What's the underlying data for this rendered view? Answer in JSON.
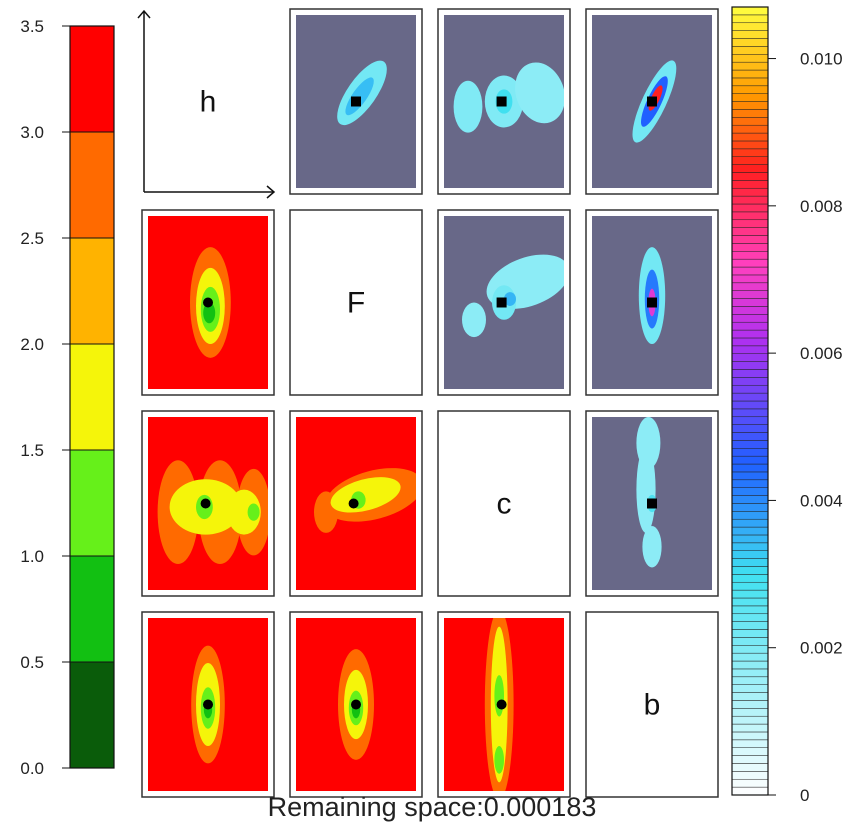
{
  "chart_data": {
    "type": "heatmap",
    "variables": [
      "h",
      "F",
      "c",
      "b"
    ],
    "footer": "Remaining space:0.000183",
    "left_colorbar": {
      "ticks": [
        "0.0",
        "0.5",
        "1.0",
        "1.5",
        "2.0",
        "2.5",
        "3.0",
        "3.5"
      ],
      "range": [
        0,
        3.5
      ],
      "bins": [
        {
          "from": 0.0,
          "to": 0.5,
          "color": "#0a5c0a"
        },
        {
          "from": 0.5,
          "to": 1.0,
          "color": "#12c012"
        },
        {
          "from": 1.0,
          "to": 1.5,
          "color": "#66f01a"
        },
        {
          "from": 1.5,
          "to": 2.0,
          "color": "#f5f50a"
        },
        {
          "from": 2.0,
          "to": 2.5,
          "color": "#ffb300"
        },
        {
          "from": 2.5,
          "to": 3.0,
          "color": "#ff6a00"
        },
        {
          "from": 3.0,
          "to": 3.5,
          "color": "#ff0000"
        }
      ]
    },
    "right_colorbar": {
      "ticks": [
        "0",
        "0.002",
        "0.004",
        "0.006",
        "0.008",
        "0.010"
      ],
      "tick_values": [
        0,
        0.002,
        0.004,
        0.006,
        0.008,
        0.01
      ],
      "range": [
        0,
        0.0107
      ],
      "gradient_stops": [
        {
          "v": 0.0,
          "color": "#ffffff"
        },
        {
          "v": 0.003,
          "color": "#40e0f0"
        },
        {
          "v": 0.0045,
          "color": "#2060ff"
        },
        {
          "v": 0.0062,
          "color": "#b030f0"
        },
        {
          "v": 0.0072,
          "color": "#ff40c0"
        },
        {
          "v": 0.0085,
          "color": "#ff2020"
        },
        {
          "v": 0.0095,
          "color": "#ff9a00"
        },
        {
          "v": 0.0107,
          "color": "#ffff40"
        }
      ],
      "background_color": "#686888"
    },
    "panels": [
      {
        "row": 0,
        "col": 1,
        "style": "upper",
        "marker": [
          0.5,
          0.5
        ],
        "blobs": [
          {
            "cx": 0.55,
            "cy": 0.45,
            "rx": 0.12,
            "ry": 0.22,
            "rot": 35,
            "level": 0.0022
          },
          {
            "cx": 0.53,
            "cy": 0.47,
            "rx": 0.06,
            "ry": 0.13,
            "rot": 35,
            "level": 0.0034
          }
        ]
      },
      {
        "row": 0,
        "col": 2,
        "style": "upper",
        "marker": [
          0.48,
          0.5
        ],
        "blobs": [
          {
            "cx": 0.2,
            "cy": 0.53,
            "rx": 0.12,
            "ry": 0.15,
            "rot": 0,
            "level": 0.002
          },
          {
            "cx": 0.5,
            "cy": 0.5,
            "rx": 0.16,
            "ry": 0.15,
            "rot": 0,
            "level": 0.002
          },
          {
            "cx": 0.8,
            "cy": 0.45,
            "rx": 0.2,
            "ry": 0.18,
            "rot": -20,
            "level": 0.0018
          },
          {
            "cx": 0.5,
            "cy": 0.5,
            "rx": 0.07,
            "ry": 0.07,
            "rot": 0,
            "level": 0.003
          }
        ]
      },
      {
        "row": 0,
        "col": 3,
        "style": "upper",
        "marker": [
          0.5,
          0.5
        ],
        "blobs": [
          {
            "cx": 0.52,
            "cy": 0.5,
            "rx": 0.1,
            "ry": 0.26,
            "rot": 25,
            "level": 0.0022
          },
          {
            "cx": 0.52,
            "cy": 0.5,
            "rx": 0.06,
            "ry": 0.16,
            "rot": 25,
            "level": 0.0045
          },
          {
            "cx": 0.53,
            "cy": 0.48,
            "rx": 0.035,
            "ry": 0.08,
            "rot": 25,
            "level": 0.0085
          }
        ]
      },
      {
        "row": 1,
        "col": 0,
        "style": "lower",
        "marker": [
          0.5,
          0.5
        ],
        "blobs": [
          {
            "cx": 0.52,
            "cy": 0.5,
            "rx": 0.17,
            "ry": 0.32,
            "rot": 0,
            "level": 2.6
          },
          {
            "cx": 0.52,
            "cy": 0.52,
            "rx": 0.12,
            "ry": 0.22,
            "rot": 0,
            "level": 1.7
          },
          {
            "cx": 0.52,
            "cy": 0.54,
            "rx": 0.08,
            "ry": 0.13,
            "rot": 0,
            "level": 1.2
          },
          {
            "cx": 0.51,
            "cy": 0.56,
            "rx": 0.05,
            "ry": 0.06,
            "rot": 0,
            "level": 0.7
          }
        ]
      },
      {
        "row": 2,
        "col": 0,
        "style": "lower",
        "marker": [
          0.48,
          0.5
        ],
        "blobs": [
          {
            "cx": 0.25,
            "cy": 0.55,
            "rx": 0.17,
            "ry": 0.3,
            "rot": 0,
            "level": 2.6
          },
          {
            "cx": 0.6,
            "cy": 0.55,
            "rx": 0.18,
            "ry": 0.3,
            "rot": 0,
            "level": 2.6
          },
          {
            "cx": 0.88,
            "cy": 0.55,
            "rx": 0.14,
            "ry": 0.25,
            "rot": 0,
            "level": 2.6
          },
          {
            "cx": 0.48,
            "cy": 0.52,
            "rx": 0.3,
            "ry": 0.16,
            "rot": 0,
            "level": 1.7
          },
          {
            "cx": 0.8,
            "cy": 0.55,
            "rx": 0.14,
            "ry": 0.13,
            "rot": 0,
            "level": 1.7
          },
          {
            "cx": 0.47,
            "cy": 0.52,
            "rx": 0.07,
            "ry": 0.07,
            "rot": 0,
            "level": 1.2
          },
          {
            "cx": 0.88,
            "cy": 0.55,
            "rx": 0.05,
            "ry": 0.05,
            "rot": 0,
            "level": 1.2
          }
        ]
      },
      {
        "row": 2,
        "col": 1,
        "style": "lower",
        "marker": [
          0.48,
          0.5
        ],
        "blobs": [
          {
            "cx": 0.65,
            "cy": 0.45,
            "rx": 0.42,
            "ry": 0.14,
            "rot": -15,
            "level": 2.6
          },
          {
            "cx": 0.25,
            "cy": 0.55,
            "rx": 0.1,
            "ry": 0.12,
            "rot": 0,
            "level": 2.6
          },
          {
            "cx": 0.58,
            "cy": 0.45,
            "rx": 0.3,
            "ry": 0.09,
            "rot": -15,
            "level": 1.7
          },
          {
            "cx": 0.52,
            "cy": 0.48,
            "rx": 0.06,
            "ry": 0.05,
            "rot": 0,
            "level": 1.2
          }
        ]
      },
      {
        "row": 3,
        "col": 0,
        "style": "lower",
        "marker": [
          0.5,
          0.5
        ],
        "blobs": [
          {
            "cx": 0.5,
            "cy": 0.5,
            "rx": 0.14,
            "ry": 0.34,
            "rot": 0,
            "level": 2.6
          },
          {
            "cx": 0.5,
            "cy": 0.5,
            "rx": 0.1,
            "ry": 0.24,
            "rot": 0,
            "level": 1.7
          },
          {
            "cx": 0.5,
            "cy": 0.52,
            "rx": 0.06,
            "ry": 0.12,
            "rot": 0,
            "level": 1.2
          },
          {
            "cx": 0.5,
            "cy": 0.53,
            "rx": 0.035,
            "ry": 0.05,
            "rot": 0,
            "level": 0.7
          }
        ]
      },
      {
        "row": 3,
        "col": 1,
        "style": "lower",
        "marker": [
          0.5,
          0.5
        ],
        "blobs": [
          {
            "cx": 0.5,
            "cy": 0.5,
            "rx": 0.15,
            "ry": 0.32,
            "rot": 0,
            "level": 2.6
          },
          {
            "cx": 0.5,
            "cy": 0.5,
            "rx": 0.1,
            "ry": 0.2,
            "rot": 0,
            "level": 1.7
          },
          {
            "cx": 0.5,
            "cy": 0.52,
            "rx": 0.06,
            "ry": 0.1,
            "rot": 0,
            "level": 1.2
          },
          {
            "cx": 0.5,
            "cy": 0.53,
            "rx": 0.035,
            "ry": 0.05,
            "rot": 0,
            "level": 0.7
          }
        ]
      },
      {
        "row": 3,
        "col": 2,
        "style": "lower",
        "marker": [
          0.48,
          0.5
        ],
        "blobs": [
          {
            "cx": 0.46,
            "cy": 0.5,
            "rx": 0.12,
            "ry": 0.55,
            "rot": 0,
            "level": 2.6
          },
          {
            "cx": 0.46,
            "cy": 0.5,
            "rx": 0.07,
            "ry": 0.45,
            "rot": 0,
            "level": 1.7
          },
          {
            "cx": 0.46,
            "cy": 0.45,
            "rx": 0.04,
            "ry": 0.12,
            "rot": 0,
            "level": 1.2
          },
          {
            "cx": 0.46,
            "cy": 0.82,
            "rx": 0.04,
            "ry": 0.08,
            "rot": 0,
            "level": 1.2
          }
        ]
      },
      {
        "row": 1,
        "col": 2,
        "style": "upper",
        "marker": [
          0.48,
          0.5
        ],
        "blobs": [
          {
            "cx": 0.7,
            "cy": 0.38,
            "rx": 0.36,
            "ry": 0.14,
            "rot": -20,
            "level": 0.0018
          },
          {
            "cx": 0.25,
            "cy": 0.6,
            "rx": 0.1,
            "ry": 0.1,
            "rot": 0,
            "level": 0.0018
          },
          {
            "cx": 0.5,
            "cy": 0.5,
            "rx": 0.1,
            "ry": 0.1,
            "rot": 0,
            "level": 0.0022
          },
          {
            "cx": 0.55,
            "cy": 0.48,
            "rx": 0.05,
            "ry": 0.04,
            "rot": 0,
            "level": 0.0035
          }
        ]
      },
      {
        "row": 1,
        "col": 3,
        "style": "upper",
        "marker": [
          0.5,
          0.5
        ],
        "blobs": [
          {
            "cx": 0.5,
            "cy": 0.46,
            "rx": 0.11,
            "ry": 0.28,
            "rot": 0,
            "level": 0.0022
          },
          {
            "cx": 0.5,
            "cy": 0.48,
            "rx": 0.06,
            "ry": 0.17,
            "rot": 0,
            "level": 0.0042
          },
          {
            "cx": 0.5,
            "cy": 0.5,
            "rx": 0.03,
            "ry": 0.08,
            "rot": 0,
            "level": 0.0068
          }
        ]
      },
      {
        "row": 2,
        "col": 3,
        "style": "upper",
        "marker": [
          0.5,
          0.5
        ],
        "blobs": [
          {
            "cx": 0.47,
            "cy": 0.15,
            "rx": 0.1,
            "ry": 0.15,
            "rot": 0,
            "level": 0.0018
          },
          {
            "cx": 0.45,
            "cy": 0.42,
            "rx": 0.08,
            "ry": 0.25,
            "rot": 0,
            "level": 0.0018
          },
          {
            "cx": 0.5,
            "cy": 0.75,
            "rx": 0.08,
            "ry": 0.12,
            "rot": 0,
            "level": 0.0018
          },
          {
            "cx": 0.5,
            "cy": 0.5,
            "rx": 0.04,
            "ry": 0.05,
            "rot": 0,
            "level": 0.0028
          }
        ]
      }
    ]
  }
}
